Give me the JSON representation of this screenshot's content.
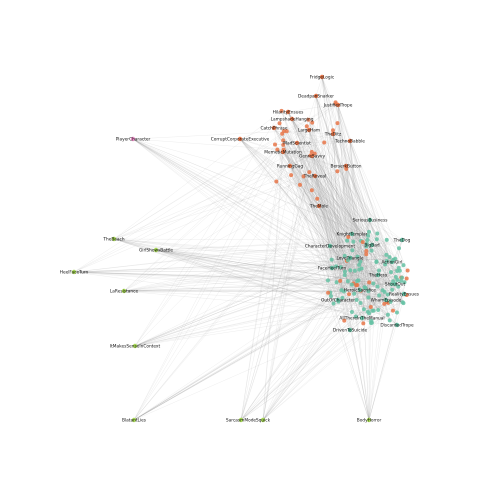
{
  "nodes": [
    {
      "label": "FridgeLogic",
      "color": "#e8774a"
    },
    {
      "label": "DeadpanSnarker",
      "color": "#e8774a"
    },
    {
      "label": "JustifiedTrope",
      "color": "#e8774a"
    },
    {
      "label": "HilarityEnsues",
      "color": "#e8774a"
    },
    {
      "label": "LampshadeHanging",
      "color": "#e8774a"
    },
    {
      "label": "CatchPhrase",
      "color": "#e8774a"
    },
    {
      "label": "LargeHam",
      "color": "#e8774a"
    },
    {
      "label": "TheDitz",
      "color": "#e8774a"
    },
    {
      "label": "MadScientist",
      "color": "#e8774a"
    },
    {
      "label": "TechnoBabble",
      "color": "#e8774a"
    },
    {
      "label": "MemeticMutation",
      "color": "#e8774a"
    },
    {
      "label": "GenreSavvy",
      "color": "#e8774a"
    },
    {
      "label": "RunningGag",
      "color": "#e8774a"
    },
    {
      "label": "BerserkButton",
      "color": "#e8774a"
    },
    {
      "label": "TheReveal",
      "color": "#e8774a"
    },
    {
      "label": "TheMole",
      "color": "#e8774a"
    },
    {
      "label": "CorruptCorporateExecutive",
      "color": "#e8774a"
    },
    {
      "label": "PlayerCharacter",
      "color": "#e78ac3"
    },
    {
      "label": "TheBeach",
      "color": "#a6d854"
    },
    {
      "label": "GirlShowsBattle",
      "color": "#a6d854"
    },
    {
      "label": "HeelFaceTurn",
      "color": "#a6d854"
    },
    {
      "label": "LaResistance",
      "color": "#a6d854"
    },
    {
      "label": "ItMakesSenseInContext",
      "color": "#a6d854"
    },
    {
      "label": "BlatantLies",
      "color": "#a6d854"
    },
    {
      "label": "SarcasmMode",
      "color": "#a6d854"
    },
    {
      "label": "Squick",
      "color": "#a6d854"
    },
    {
      "label": "BodyHorror",
      "color": "#a6d854"
    },
    {
      "label": "SeriousBusiness",
      "color": "#66c2a5"
    },
    {
      "label": "KnightTemplar",
      "color": "#66c2a5"
    },
    {
      "label": "CharacterDevelopment",
      "color": "#66c2a5"
    },
    {
      "label": "BigBad",
      "color": "#66c2a5"
    },
    {
      "label": "ActionGirl",
      "color": "#66c2a5"
    },
    {
      "label": "LoveTriangle",
      "color": "#66c2a5"
    },
    {
      "label": "FaceHeelTurn",
      "color": "#66c2a5"
    },
    {
      "label": "TheHero",
      "color": "#66c2a5"
    },
    {
      "label": "ShoutOut",
      "color": "#66c2a5"
    },
    {
      "label": "HeroicSacrifice",
      "color": "#66c2a5"
    },
    {
      "label": "WhamEpisode",
      "color": "#66c2a5"
    },
    {
      "label": "OutOfCharacter",
      "color": "#66c2a5"
    },
    {
      "label": "TheDog",
      "color": "#66c2a5"
    },
    {
      "label": "DrivenToSuicide",
      "color": "#66c2a5"
    },
    {
      "label": "DiscardedTrope",
      "color": "#66c2a5"
    },
    {
      "label": "AllThereInTheManual",
      "color": "#66c2a5"
    },
    {
      "label": "RealityEnsues",
      "color": "#66c2a5"
    }
  ]
}
